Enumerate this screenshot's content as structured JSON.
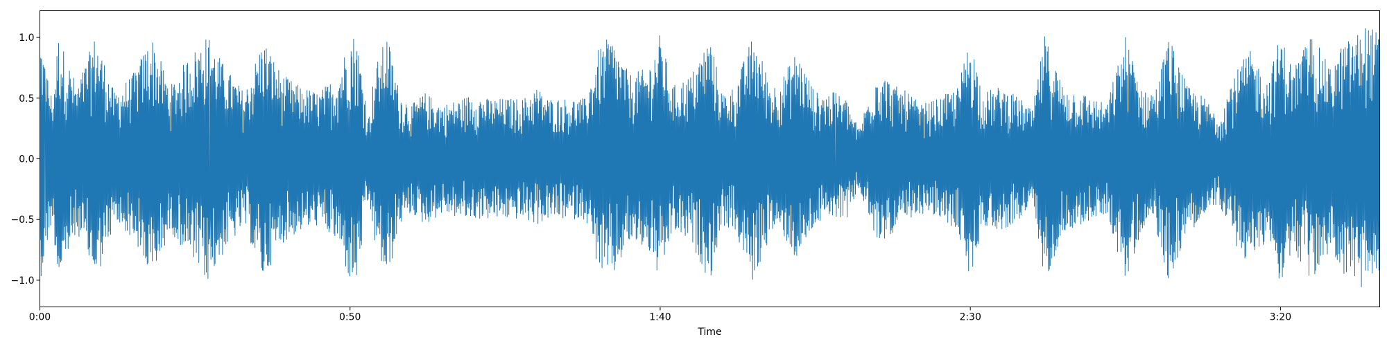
{
  "chart_data": {
    "type": "area",
    "title": "",
    "xlabel": "Time",
    "ylabel": "",
    "xlim": [
      0,
      216
    ],
    "ylim": [
      -1.22,
      1.22
    ],
    "x_ticks": [
      {
        "value": 0,
        "label": "0:00"
      },
      {
        "value": 50,
        "label": "0:50"
      },
      {
        "value": 100,
        "label": "1:40"
      },
      {
        "value": 150,
        "label": "2:30"
      },
      {
        "value": 200,
        "label": "3:20"
      }
    ],
    "y_ticks": [
      {
        "value": -1.0,
        "label": "−1.0"
      },
      {
        "value": -0.5,
        "label": "−0.5"
      },
      {
        "value": 0.0,
        "label": "0.0"
      },
      {
        "value": 0.5,
        "label": "0.5"
      },
      {
        "value": 1.0,
        "label": "1.0"
      }
    ],
    "grid": false,
    "series": [
      {
        "color": "#1f77b4",
        "envelope_time_s": [
          0,
          2,
          3,
          6,
          9,
          12,
          15,
          18,
          21,
          24,
          27,
          30,
          33,
          36,
          39,
          42,
          45,
          48,
          50,
          51,
          53,
          54,
          56,
          58,
          60,
          62,
          65,
          68,
          70,
          72,
          75,
          78,
          80,
          82,
          85,
          88,
          90,
          92,
          95,
          98,
          100,
          102,
          105,
          108,
          110,
          112,
          115,
          118,
          120,
          122,
          125,
          128,
          130,
          132,
          135,
          138,
          140,
          142,
          145,
          148,
          150,
          152,
          155,
          158,
          160,
          162,
          165,
          168,
          170,
          172,
          175,
          178,
          180,
          182,
          185,
          188,
          190,
          192,
          195,
          198,
          200,
          202,
          205,
          208,
          210,
          212,
          214,
          216
        ],
        "envelope_max": [
          1.02,
          0.5,
          1.02,
          0.6,
          1.03,
          0.55,
          0.7,
          1.02,
          0.6,
          0.85,
          1.02,
          0.75,
          0.55,
          1.0,
          0.7,
          0.6,
          0.55,
          0.7,
          1.02,
          1.04,
          0.35,
          0.75,
          1.03,
          0.55,
          0.45,
          0.55,
          0.45,
          0.5,
          0.55,
          0.5,
          0.5,
          0.5,
          0.6,
          0.5,
          0.5,
          0.5,
          0.9,
          1.02,
          0.7,
          0.75,
          1.03,
          0.6,
          0.7,
          1.02,
          0.55,
          0.6,
          1.03,
          0.6,
          0.7,
          0.9,
          0.55,
          0.55,
          0.5,
          0.25,
          0.75,
          0.6,
          0.55,
          0.45,
          0.5,
          0.6,
          1.02,
          0.55,
          0.6,
          0.5,
          0.4,
          1.02,
          0.6,
          0.55,
          0.5,
          0.45,
          1.02,
          0.55,
          0.6,
          1.02,
          0.6,
          0.5,
          0.35,
          0.65,
          0.9,
          0.65,
          1.03,
          0.75,
          1.04,
          0.75,
          0.95,
          1.02,
          1.12,
          1.03
        ],
        "envelope_min": [
          -1.02,
          -0.5,
          -1.03,
          -0.6,
          -1.02,
          -0.55,
          -0.65,
          -1.02,
          -0.6,
          -0.8,
          -1.03,
          -0.75,
          -0.55,
          -1.0,
          -0.7,
          -0.6,
          -0.55,
          -0.7,
          -1.02,
          -1.04,
          -0.35,
          -0.7,
          -1.03,
          -0.55,
          -0.45,
          -0.55,
          -0.45,
          -0.5,
          -0.5,
          -0.5,
          -0.5,
          -0.5,
          -0.55,
          -0.5,
          -0.5,
          -0.5,
          -0.9,
          -1.03,
          -0.7,
          -0.75,
          -1.02,
          -0.6,
          -0.7,
          -1.02,
          -0.55,
          -0.6,
          -1.03,
          -0.6,
          -0.65,
          -0.85,
          -0.55,
          -0.5,
          -0.5,
          -0.25,
          -0.7,
          -0.6,
          -0.55,
          -0.45,
          -0.5,
          -0.6,
          -1.02,
          -0.55,
          -0.6,
          -0.5,
          -0.4,
          -1.02,
          -0.6,
          -0.55,
          -0.5,
          -0.45,
          -1.02,
          -0.55,
          -0.6,
          -1.02,
          -0.6,
          -0.5,
          -0.35,
          -0.65,
          -0.9,
          -0.65,
          -1.04,
          -0.75,
          -1.04,
          -0.75,
          -0.95,
          -1.03,
          -1.12,
          -1.03
        ]
      }
    ]
  }
}
